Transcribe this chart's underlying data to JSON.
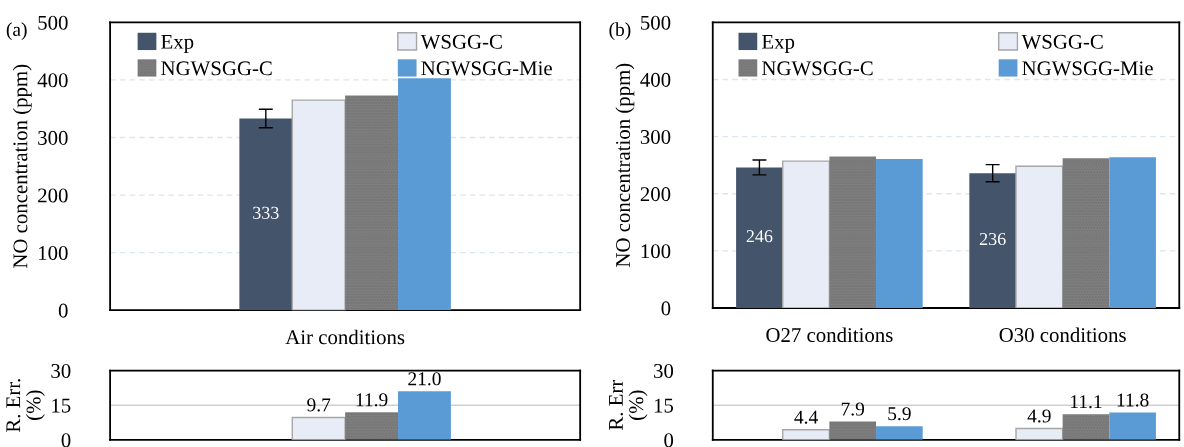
{
  "chart_data": [
    {
      "type": "bar",
      "annotations": [
        "(a)"
      ],
      "ylabel": "NO concentration (ppm)",
      "categories": [
        "Air conditions"
      ],
      "ylim": [
        0,
        500
      ],
      "yticks": [
        0,
        100,
        200,
        300,
        400,
        500
      ],
      "grid": "y",
      "legend": "top",
      "series": [
        {
          "name": "Exp",
          "color": "#44546a",
          "values": [
            333
          ],
          "errors": [
            16
          ],
          "value_labels": [
            "333"
          ]
        },
        {
          "name": "WSGG-C",
          "color": "#e7ecf6",
          "values": [
            365
          ]
        },
        {
          "name": "NGWSGG-C",
          "color": "#808080",
          "values": [
            373
          ]
        },
        {
          "name": "NGWSGG-Mie",
          "color": "#5b9bd5",
          "values": [
            403
          ]
        }
      ]
    },
    {
      "type": "bar",
      "ylabel": "R. Err.\n(%)",
      "categories": [
        null
      ],
      "ylim": [
        0,
        30
      ],
      "yticks": [
        0,
        15,
        30
      ],
      "grid": "y",
      "series": [
        {
          "color": "#e7ecf6",
          "values": [
            9.7
          ],
          "value_labels": [
            "9.7"
          ]
        },
        {
          "color": "#808080",
          "values": [
            11.9
          ],
          "value_labels": [
            "11.9"
          ]
        },
        {
          "color": "#5b9bd5",
          "values": [
            21.0
          ],
          "value_labels": [
            "21.0"
          ]
        }
      ]
    },
    {
      "type": "bar",
      "annotations": [
        "(b)"
      ],
      "ylabel": "NO concentration (ppm)",
      "categories": [
        "O27 conditions",
        "O30 conditions"
      ],
      "ylim": [
        0,
        500
      ],
      "yticks": [
        0,
        100,
        200,
        300,
        400,
        500
      ],
      "grid": "y",
      "legend": "top",
      "series": [
        {
          "name": "Exp",
          "color": "#44546a",
          "values": [
            246,
            236
          ],
          "errors": [
            13,
            15
          ],
          "value_labels": [
            "246",
            "236"
          ]
        },
        {
          "name": "WSGG-C",
          "color": "#e7ecf6",
          "values": [
            257,
            248
          ]
        },
        {
          "name": "NGWSGG-C",
          "color": "#808080",
          "values": [
            265,
            262
          ]
        },
        {
          "name": "NGWSGG-Mie",
          "color": "#5b9bd5",
          "values": [
            261,
            264
          ]
        }
      ]
    },
    {
      "type": "bar",
      "ylabel": "R. Err\n(%)",
      "categories": [
        null,
        null
      ],
      "ylim": [
        0,
        30
      ],
      "yticks": [
        0,
        15,
        30
      ],
      "grid": "y",
      "series": [
        {
          "color": "#e7ecf6",
          "values": [
            4.4,
            4.9
          ],
          "value_labels": [
            "4.4",
            "4.9"
          ]
        },
        {
          "color": "#808080",
          "values": [
            7.9,
            11.1
          ],
          "value_labels": [
            "7.9",
            "11.1"
          ]
        },
        {
          "color": "#5b9bd5",
          "values": [
            5.9,
            11.8
          ],
          "value_labels": [
            "5.9",
            "11.8"
          ]
        }
      ]
    }
  ]
}
